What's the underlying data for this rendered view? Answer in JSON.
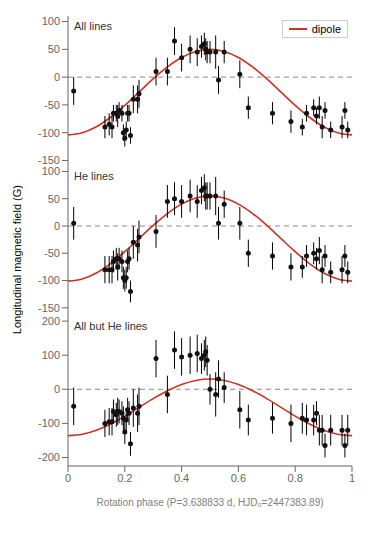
{
  "chart_data": [
    {
      "type": "scatter",
      "annotations": [
        "All lines"
      ],
      "xlim": [
        0,
        1
      ],
      "xticks": [
        0,
        0.2,
        0.4,
        0.6,
        0.8,
        1
      ],
      "ylim": [
        -160,
        110
      ],
      "yticks": [
        -150,
        -100,
        -50,
        0,
        50,
        100
      ],
      "tick_labels": "y",
      "legend": "upper right",
      "series": [
        {
          "type": "line",
          "line_style": "dashed",
          "color": "#888888",
          "x": [
            0,
            1
          ],
          "values": [
            0,
            0
          ]
        },
        {
          "name": "dipole",
          "type": "line",
          "color": "#cc3322",
          "x": [
            0,
            0.05,
            0.1,
            0.15,
            0.2,
            0.25,
            0.3,
            0.35,
            0.4,
            0.45,
            0.5,
            0.55,
            0.6,
            0.65,
            0.7,
            0.75,
            0.8,
            0.85,
            0.9,
            0.95,
            1
          ],
          "values": [
            -104,
            -100.23,
            -89.29,
            -72.26,
            -50.79,
            -27,
            -3.21,
            18.26,
            35.29,
            46.23,
            50,
            46.23,
            35.29,
            18.26,
            -3.21,
            -27,
            -50.79,
            -72.26,
            -89.29,
            -100.23,
            -104
          ]
        },
        {
          "type": "scatter",
          "marker": "circle",
          "color": "#111111",
          "x": [
            0.02,
            0.13,
            0.145,
            0.155,
            0.16,
            0.17,
            0.175,
            0.18,
            0.19,
            0.195,
            0.2,
            0.205,
            0.21,
            0.215,
            0.22,
            0.23,
            0.245,
            0.25,
            0.31,
            0.35,
            0.375,
            0.4,
            0.43,
            0.455,
            0.47,
            0.48,
            0.485,
            0.49,
            0.5,
            0.52,
            0.53,
            0.55,
            0.605,
            0.635,
            0.72,
            0.785,
            0.825,
            0.84,
            0.865,
            0.875,
            0.885,
            0.895,
            0.905,
            0.925,
            0.965,
            0.975,
            0.985
          ],
          "values": [
            -25,
            -90,
            -85,
            -90,
            -65,
            -65,
            -70,
            -60,
            -65,
            -100,
            -110,
            -95,
            -65,
            -65,
            -105,
            -40,
            -40,
            -30,
            10,
            10,
            65,
            35,
            50,
            45,
            55,
            60,
            50,
            45,
            45,
            45,
            -5,
            45,
            5,
            -55,
            -65,
            -80,
            -90,
            -65,
            -55,
            -70,
            -55,
            -90,
            -60,
            -95,
            -90,
            -60,
            -95
          ],
          "yerr": [
            25,
            20,
            20,
            20,
            15,
            15,
            20,
            15,
            15,
            15,
            15,
            15,
            15,
            15,
            15,
            25,
            25,
            25,
            25,
            25,
            25,
            25,
            25,
            25,
            20,
            20,
            20,
            20,
            20,
            30,
            25,
            20,
            25,
            20,
            20,
            20,
            15,
            15,
            15,
            15,
            20,
            20,
            15,
            15,
            20,
            15,
            15
          ]
        }
      ]
    },
    {
      "type": "scatter",
      "annotations": [
        "He lines"
      ],
      "ylabel": "Longitudinal magnetic field (G)",
      "xlim": [
        0,
        1
      ],
      "xticks": [
        0,
        0.2,
        0.4,
        0.6,
        0.8,
        1
      ],
      "ylim": [
        -165,
        110
      ],
      "yticks": [
        -150,
        -100,
        -50,
        0,
        50,
        100
      ],
      "tick_labels": "y",
      "series": [
        {
          "type": "line",
          "line_style": "dashed",
          "color": "#888888",
          "x": [
            0,
            1
          ],
          "values": [
            0,
            0
          ]
        },
        {
          "type": "line",
          "color": "#cc3322",
          "x": [
            0,
            0.05,
            0.1,
            0.15,
            0.2,
            0.25,
            0.3,
            0.35,
            0.4,
            0.45,
            0.5,
            0.55,
            0.6,
            0.65,
            0.7,
            0.75,
            0.8,
            0.85,
            0.9,
            0.95,
            1
          ],
          "values": [
            -101,
            -97.18,
            -86.1,
            -68.85,
            -47.1,
            -23,
            1.1,
            22.85,
            40.1,
            51.18,
            55,
            51.18,
            40.1,
            22.85,
            1.1,
            -23,
            -47.1,
            -68.85,
            -86.1,
            -97.18,
            -101
          ]
        },
        {
          "type": "scatter",
          "marker": "circle",
          "color": "#111111",
          "x": [
            0.02,
            0.13,
            0.145,
            0.155,
            0.16,
            0.17,
            0.175,
            0.18,
            0.19,
            0.195,
            0.2,
            0.205,
            0.21,
            0.215,
            0.22,
            0.23,
            0.245,
            0.25,
            0.31,
            0.35,
            0.375,
            0.4,
            0.43,
            0.455,
            0.47,
            0.48,
            0.485,
            0.49,
            0.5,
            0.52,
            0.53,
            0.55,
            0.605,
            0.635,
            0.72,
            0.785,
            0.825,
            0.84,
            0.865,
            0.875,
            0.885,
            0.895,
            0.905,
            0.925,
            0.965,
            0.975,
            0.985
          ],
          "values": [
            5,
            -80,
            -80,
            -80,
            -65,
            -60,
            -75,
            -60,
            -65,
            -95,
            -100,
            -95,
            -65,
            -60,
            -120,
            -30,
            -35,
            -20,
            -10,
            45,
            50,
            45,
            55,
            45,
            65,
            70,
            55,
            55,
            55,
            55,
            5,
            40,
            5,
            -50,
            -55,
            -75,
            -75,
            -55,
            -50,
            -60,
            -45,
            -80,
            -55,
            -85,
            -80,
            -55,
            -85
          ],
          "yerr": [
            30,
            25,
            25,
            25,
            20,
            20,
            25,
            20,
            20,
            20,
            20,
            20,
            20,
            20,
            20,
            30,
            30,
            30,
            30,
            30,
            30,
            30,
            30,
            30,
            25,
            25,
            25,
            25,
            25,
            35,
            30,
            25,
            30,
            25,
            25,
            25,
            20,
            20,
            20,
            20,
            25,
            25,
            20,
            20,
            25,
            20,
            20
          ]
        }
      ]
    },
    {
      "type": "scatter",
      "annotations": [
        "All but He lines"
      ],
      "xlabel": "Rotation phase (P=3.638833 d, HJD₀=2447383.89)",
      "xlim": [
        0,
        1
      ],
      "xticks": [
        0,
        0.2,
        0.4,
        0.6,
        0.8,
        1
      ],
      "ylim": [
        -225,
        215
      ],
      "yticks": [
        -200,
        -100,
        0,
        100,
        200
      ],
      "series": [
        {
          "type": "line",
          "line_style": "dashed",
          "color": "#888888",
          "x": [
            0,
            1
          ],
          "values": [
            0,
            0
          ]
        },
        {
          "type": "line",
          "color": "#cc3322",
          "x": [
            0,
            0.05,
            0.1,
            0.15,
            0.2,
            0.25,
            0.3,
            0.35,
            0.4,
            0.45,
            0.5,
            0.55,
            0.6,
            0.65,
            0.7,
            0.75,
            0.8,
            0.85,
            0.9,
            0.95,
            1
          ],
          "values": [
            -136,
            -131.94,
            -120.15,
            -101.79,
            -78.65,
            -53,
            -27.35,
            -4.21,
            14.15,
            25.94,
            30,
            25.94,
            14.15,
            -4.21,
            -27.35,
            -53,
            -78.65,
            -101.79,
            -120.15,
            -131.94,
            -136
          ]
        },
        {
          "type": "scatter",
          "marker": "circle",
          "color": "#111111",
          "x": [
            0.02,
            0.13,
            0.145,
            0.155,
            0.16,
            0.17,
            0.175,
            0.18,
            0.19,
            0.195,
            0.2,
            0.205,
            0.21,
            0.215,
            0.22,
            0.23,
            0.245,
            0.25,
            0.31,
            0.35,
            0.375,
            0.4,
            0.43,
            0.455,
            0.47,
            0.48,
            0.485,
            0.49,
            0.5,
            0.52,
            0.53,
            0.55,
            0.605,
            0.635,
            0.72,
            0.785,
            0.825,
            0.84,
            0.865,
            0.875,
            0.885,
            0.895,
            0.905,
            0.925,
            0.965,
            0.975,
            0.985
          ],
          "values": [
            -50,
            -100,
            -95,
            -95,
            -65,
            -75,
            -65,
            -65,
            -70,
            -85,
            -125,
            -90,
            -60,
            -70,
            -160,
            -55,
            -70,
            -50,
            90,
            -15,
            115,
            95,
            100,
            105,
            90,
            100,
            110,
            85,
            0,
            -15,
            30,
            5,
            -60,
            -90,
            -85,
            -100,
            -85,
            -90,
            -90,
            -70,
            -120,
            -120,
            -165,
            -120,
            -120,
            -165,
            -120
          ],
          "yerr": [
            55,
            40,
            40,
            40,
            35,
            35,
            40,
            35,
            35,
            35,
            35,
            35,
            35,
            35,
            35,
            55,
            55,
            55,
            55,
            55,
            55,
            55,
            55,
            55,
            45,
            45,
            45,
            45,
            45,
            65,
            55,
            45,
            55,
            45,
            45,
            55,
            45,
            45,
            45,
            35,
            45,
            45,
            35,
            45,
            45,
            35,
            45
          ]
        }
      ]
    }
  ]
}
